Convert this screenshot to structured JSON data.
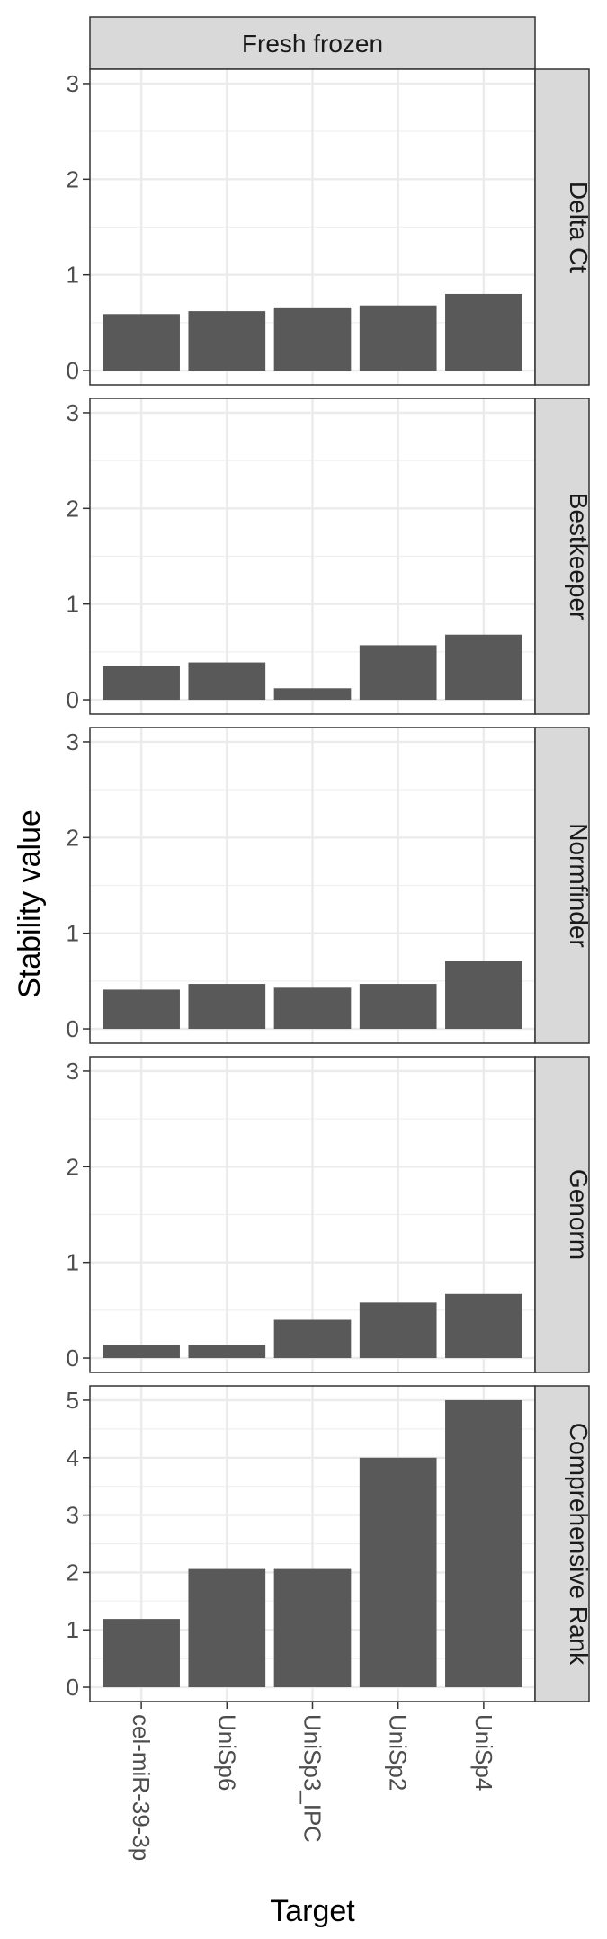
{
  "chart_data": {
    "type": "bar",
    "column_strip": "Fresh frozen",
    "xlabel": "Target",
    "ylabel": "Stability value",
    "categories": [
      "cel-miR-39-3p",
      "UniSp6",
      "UniSp3_IPC",
      "UniSp2",
      "UniSp4"
    ],
    "bar_color": "#595959",
    "grid": true,
    "panels": [
      {
        "name": "Delta Ct",
        "ylim": [
          0,
          3
        ],
        "yticks": [
          0,
          1,
          2,
          3
        ],
        "values": [
          0.59,
          0.62,
          0.66,
          0.68,
          0.8
        ]
      },
      {
        "name": "Bestkeeper",
        "ylim": [
          0,
          3
        ],
        "yticks": [
          0,
          1,
          2,
          3
        ],
        "values": [
          0.35,
          0.39,
          0.12,
          0.57,
          0.68
        ]
      },
      {
        "name": "Normfinder",
        "ylim": [
          0,
          3
        ],
        "yticks": [
          0,
          1,
          2,
          3
        ],
        "values": [
          0.41,
          0.47,
          0.43,
          0.47,
          0.71
        ]
      },
      {
        "name": "Genorm",
        "ylim": [
          0,
          3
        ],
        "yticks": [
          0,
          1,
          2,
          3
        ],
        "values": [
          0.14,
          0.14,
          0.4,
          0.58,
          0.67
        ]
      },
      {
        "name": "Comprehensive Rank",
        "ylim": [
          0,
          5
        ],
        "yticks": [
          0,
          1,
          2,
          3,
          4,
          5
        ],
        "values": [
          1.19,
          2.06,
          2.06,
          4.0,
          5.0
        ]
      }
    ]
  }
}
